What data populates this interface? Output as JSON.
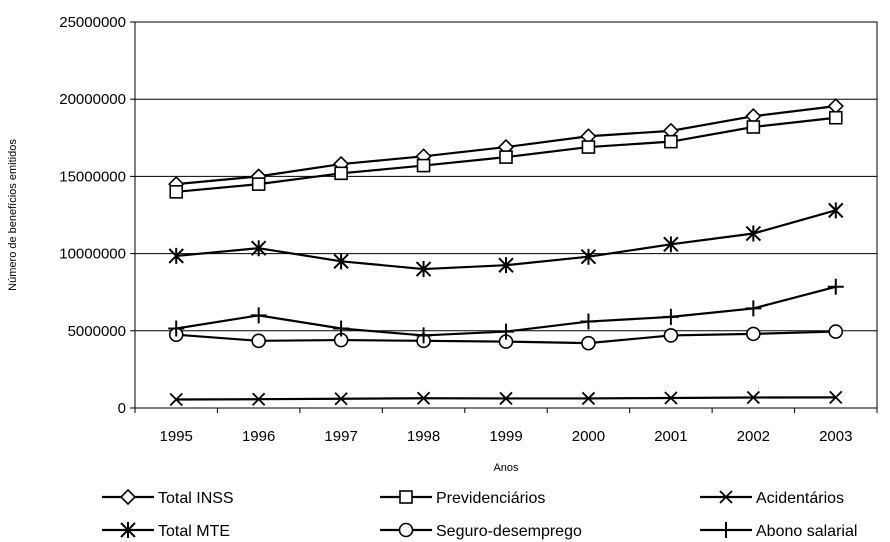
{
  "chart_data": {
    "type": "line",
    "title": "",
    "xlabel": "Anos",
    "ylabel": "Número de benefícios emitidos",
    "x": [
      "1995",
      "1996",
      "1997",
      "1998",
      "1999",
      "2000",
      "2001",
      "2002",
      "2003"
    ],
    "ylim": [
      0,
      25000000
    ],
    "yticks": [
      "0",
      "5000000",
      "10000000",
      "15000000",
      "20000000",
      "25000000"
    ],
    "grid": "horizontal",
    "legend_position": "bottom",
    "series": [
      {
        "name": "Total INSS",
        "marker": "diamond",
        "values": [
          14500000,
          15000000,
          15800000,
          16300000,
          16900000,
          17600000,
          17950000,
          18900000,
          19550000
        ]
      },
      {
        "name": "Previdenciários",
        "marker": "square",
        "values": [
          14000000,
          14500000,
          15200000,
          15700000,
          16250000,
          16900000,
          17250000,
          18200000,
          18800000
        ]
      },
      {
        "name": "Acidentários",
        "marker": "x",
        "values": [
          550000,
          570000,
          600000,
          630000,
          620000,
          620000,
          650000,
          680000,
          690000
        ]
      },
      {
        "name": "Total MTE",
        "marker": "asterisk",
        "values": [
          9850000,
          10350000,
          9500000,
          9000000,
          9250000,
          9800000,
          10600000,
          11300000,
          12800000
        ]
      },
      {
        "name": "Seguro-desemprego",
        "marker": "circle",
        "values": [
          4750000,
          4350000,
          4400000,
          4350000,
          4300000,
          4200000,
          4700000,
          4800000,
          4950000
        ]
      },
      {
        "name": "Abono salarial",
        "marker": "plus",
        "values": [
          5150000,
          6000000,
          5150000,
          4700000,
          4950000,
          5600000,
          5900000,
          6450000,
          7850000
        ]
      }
    ]
  }
}
